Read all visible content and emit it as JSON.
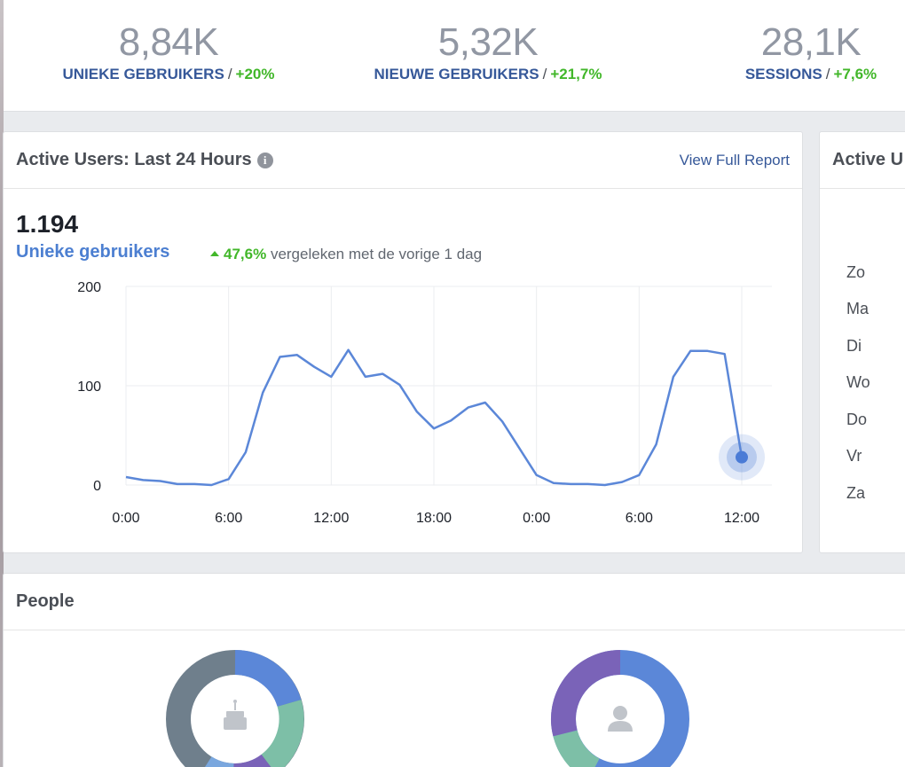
{
  "stats": [
    {
      "value": "8,84K",
      "label": "UNIEKE GEBRUIKERS",
      "sep": "/",
      "delta": "+20%"
    },
    {
      "value": "5,32K",
      "label": "NIEUWE GEBRUIKERS",
      "sep": "/",
      "delta": "+21,7%"
    },
    {
      "value": "28,1K",
      "label": "SESSIONS",
      "sep": "/",
      "delta": "+7,6%"
    }
  ],
  "active_card": {
    "title": "Active Users: Last 24 Hours",
    "info_icon": "info-icon",
    "view_link": "View Full Report",
    "big_number": "1.194",
    "metric_label": "Unieke gebruikers",
    "comparison_pct": "47,6%",
    "comparison_text": "vergeleken met de vorige 1 dag"
  },
  "side_card": {
    "title": "Active U",
    "days": [
      "Zo",
      "Ma",
      "Di",
      "Wo",
      "Do",
      "Vr",
      "Za"
    ]
  },
  "people": {
    "title": "People",
    "donut1_icon": "birthday-cake-icon",
    "donut2_icon": "person-icon"
  },
  "colors": {
    "line": "#5b87d8",
    "positive": "#42b72a",
    "link": "#365899",
    "stat_value": "#9197a3"
  },
  "chart_data": {
    "type": "line",
    "title": "Active Users: Last 24 Hours",
    "ylim": [
      0,
      200
    ],
    "yticks": [
      0,
      100,
      200
    ],
    "xticks": [
      "0:00",
      "6:00",
      "12:00",
      "18:00",
      "0:00",
      "6:00",
      "12:00"
    ],
    "xlim": [
      0,
      36
    ],
    "series": [
      {
        "name": "Unieke gebruikers",
        "x": [
          0,
          1,
          2,
          3,
          4,
          5,
          6,
          7,
          8,
          9,
          10,
          11,
          12,
          13,
          14,
          15,
          16,
          17,
          18,
          19,
          20,
          21,
          22,
          23,
          24,
          25,
          26,
          27,
          28,
          29,
          30,
          31,
          32,
          33,
          34,
          35,
          36
        ],
        "values": [
          8,
          5,
          4,
          1,
          1,
          0,
          6,
          33,
          93,
          129,
          131,
          119,
          109,
          136,
          109,
          112,
          101,
          74,
          57,
          65,
          78,
          83,
          64,
          37,
          10,
          2,
          1,
          1,
          0,
          3,
          10,
          41,
          109,
          135,
          135,
          132,
          28
        ]
      }
    ],
    "highlight": {
      "x": 36,
      "y": 28
    }
  }
}
